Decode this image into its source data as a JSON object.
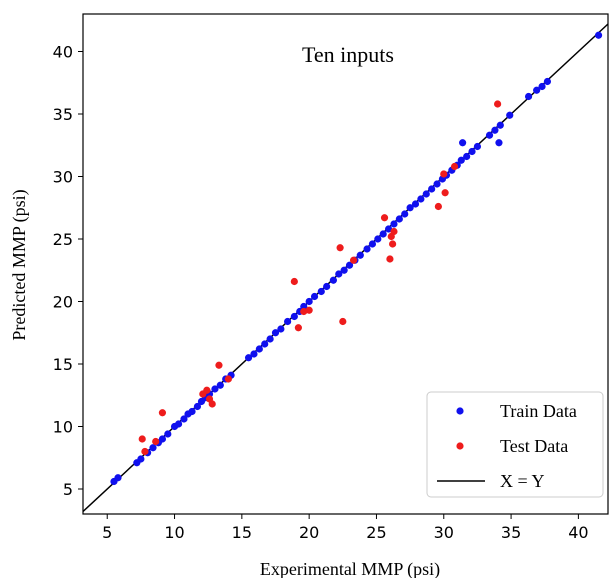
{
  "chart_data": {
    "type": "scatter",
    "title": "Ten inputs",
    "xlabel": "Experimental MMP (psi)",
    "ylabel": "Predicted MMP (psi)",
    "xlim": [
      3.2,
      42.2
    ],
    "ylim": [
      3.0,
      43.0
    ],
    "xticks": [
      5,
      10,
      15,
      20,
      25,
      30,
      35,
      40
    ],
    "yticks": [
      5,
      10,
      15,
      20,
      25,
      30,
      35,
      40
    ],
    "grid": false,
    "legend_position": "bottom-right",
    "reference_line": {
      "name": "X = Y",
      "color": "#000000"
    },
    "series": [
      {
        "name": "Train Data",
        "color": "#1010ee",
        "points": [
          [
            5.5,
            5.6
          ],
          [
            5.8,
            5.9
          ],
          [
            7.2,
            7.1
          ],
          [
            7.5,
            7.4
          ],
          [
            8.0,
            7.9
          ],
          [
            8.4,
            8.3
          ],
          [
            8.8,
            8.7
          ],
          [
            9.1,
            9.0
          ],
          [
            9.5,
            9.4
          ],
          [
            10.0,
            10.0
          ],
          [
            10.3,
            10.2
          ],
          [
            10.7,
            10.6
          ],
          [
            11.0,
            11.0
          ],
          [
            11.3,
            11.2
          ],
          [
            11.7,
            11.6
          ],
          [
            12.0,
            12.0
          ],
          [
            12.3,
            12.3
          ],
          [
            12.6,
            12.6
          ],
          [
            13.0,
            13.0
          ],
          [
            13.4,
            13.3
          ],
          [
            13.8,
            13.8
          ],
          [
            14.2,
            14.1
          ],
          [
            15.5,
            15.5
          ],
          [
            15.9,
            15.8
          ],
          [
            16.3,
            16.2
          ],
          [
            16.7,
            16.6
          ],
          [
            17.1,
            17.0
          ],
          [
            17.5,
            17.5
          ],
          [
            17.9,
            17.8
          ],
          [
            18.4,
            18.4
          ],
          [
            18.9,
            18.8
          ],
          [
            19.3,
            19.2
          ],
          [
            19.6,
            19.6
          ],
          [
            20.0,
            20.0
          ],
          [
            20.4,
            20.4
          ],
          [
            20.9,
            20.8
          ],
          [
            21.3,
            21.2
          ],
          [
            21.8,
            21.7
          ],
          [
            22.2,
            22.2
          ],
          [
            22.6,
            22.5
          ],
          [
            23.0,
            22.9
          ],
          [
            23.4,
            23.3
          ],
          [
            23.8,
            23.7
          ],
          [
            24.3,
            24.2
          ],
          [
            24.7,
            24.6
          ],
          [
            25.1,
            25.0
          ],
          [
            25.5,
            25.4
          ],
          [
            25.9,
            25.8
          ],
          [
            26.3,
            26.2
          ],
          [
            26.7,
            26.6
          ],
          [
            27.1,
            27.0
          ],
          [
            27.5,
            27.5
          ],
          [
            27.9,
            27.8
          ],
          [
            28.3,
            28.2
          ],
          [
            28.7,
            28.6
          ],
          [
            29.1,
            29.0
          ],
          [
            29.5,
            29.4
          ],
          [
            29.9,
            29.8
          ],
          [
            30.2,
            30.1
          ],
          [
            30.6,
            30.5
          ],
          [
            31.0,
            30.9
          ],
          [
            31.3,
            31.3
          ],
          [
            31.7,
            31.6
          ],
          [
            32.1,
            32.0
          ],
          [
            32.5,
            32.4
          ],
          [
            33.4,
            33.3
          ],
          [
            33.8,
            33.7
          ],
          [
            34.2,
            34.1
          ],
          [
            34.9,
            34.9
          ],
          [
            31.4,
            32.7
          ],
          [
            34.1,
            32.7
          ],
          [
            36.3,
            36.4
          ],
          [
            36.9,
            36.9
          ],
          [
            37.3,
            37.2
          ],
          [
            37.7,
            37.6
          ],
          [
            41.5,
            41.3
          ]
        ]
      },
      {
        "name": "Test Data",
        "color": "#ee1c1c",
        "points": [
          [
            7.6,
            9.0
          ],
          [
            7.8,
            8.0
          ],
          [
            8.6,
            8.8
          ],
          [
            9.1,
            11.1
          ],
          [
            12.1,
            12.6
          ],
          [
            12.4,
            12.9
          ],
          [
            12.6,
            12.2
          ],
          [
            12.8,
            11.8
          ],
          [
            13.3,
            14.9
          ],
          [
            14.0,
            13.8
          ],
          [
            18.9,
            21.6
          ],
          [
            19.2,
            17.9
          ],
          [
            19.6,
            19.2
          ],
          [
            20.0,
            19.3
          ],
          [
            22.3,
            24.3
          ],
          [
            22.5,
            18.4
          ],
          [
            23.3,
            23.3
          ],
          [
            25.6,
            26.7
          ],
          [
            26.0,
            23.4
          ],
          [
            26.1,
            25.2
          ],
          [
            26.2,
            24.6
          ],
          [
            26.3,
            25.6
          ],
          [
            29.6,
            27.6
          ],
          [
            30.1,
            28.7
          ],
          [
            30.0,
            30.2
          ],
          [
            30.8,
            30.8
          ],
          [
            34.0,
            35.8
          ]
        ]
      }
    ]
  }
}
